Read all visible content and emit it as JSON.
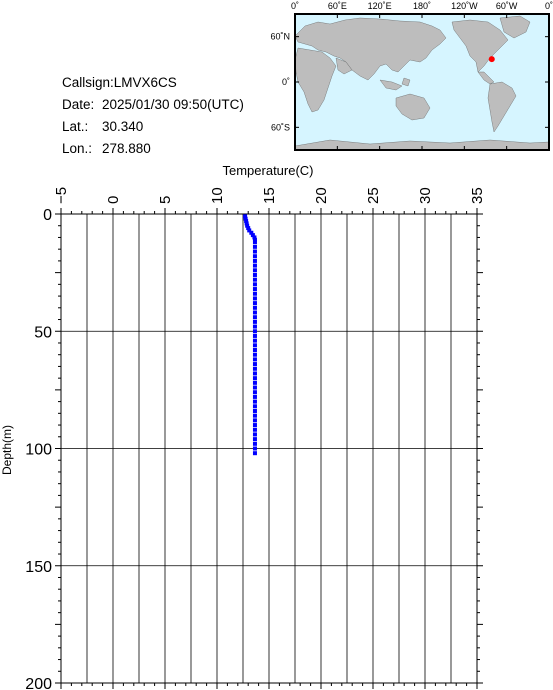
{
  "station": {
    "callsign_label": "Callsign:",
    "callsign": "LMVX6CS",
    "date_label": "Date:",
    "date": "2025/01/30 09:50(UTC)",
    "lat_label": "Lat.:",
    "lat": "30.340",
    "lon_label": "Lon.:",
    "lon": "278.880"
  },
  "map": {
    "lon_ticks": [
      "0˚",
      "60˚E",
      "120˚E",
      "180˚",
      "120˚W",
      "60˚W",
      "0˚"
    ],
    "lat_ticks": [
      "60˚N",
      "0˚",
      "60˚S"
    ],
    "ocean_color": "#d6f5ff",
    "land_color": "#bdbdbd",
    "marker_color": "#ff0000",
    "marker_lon": 278.88,
    "marker_lat": 30.34
  },
  "chart_data": {
    "type": "scatter",
    "xlabel": "Temperature(C)",
    "ylabel": "Depth(m)",
    "xlim": [
      -5,
      35
    ],
    "ylim": [
      200,
      0
    ],
    "x_ticks": [
      -5,
      0,
      5,
      10,
      15,
      20,
      25,
      30,
      35
    ],
    "y_ticks": [
      0,
      50,
      100,
      150,
      200
    ],
    "grid": true,
    "point_color": "#0000ff",
    "series": [
      {
        "points": [
          [
            12.7,
            1
          ],
          [
            12.75,
            2
          ],
          [
            12.8,
            3
          ],
          [
            12.85,
            4
          ],
          [
            12.9,
            5
          ],
          [
            13.0,
            6
          ],
          [
            13.1,
            7
          ],
          [
            13.3,
            8
          ],
          [
            13.45,
            9
          ],
          [
            13.6,
            10
          ],
          [
            13.65,
            11
          ],
          [
            13.65,
            12
          ],
          [
            13.65,
            14
          ],
          [
            13.65,
            16
          ],
          [
            13.65,
            18
          ],
          [
            13.65,
            20
          ],
          [
            13.65,
            22
          ],
          [
            13.65,
            24
          ],
          [
            13.65,
            26
          ],
          [
            13.65,
            28
          ],
          [
            13.65,
            30
          ],
          [
            13.65,
            32
          ],
          [
            13.65,
            34
          ],
          [
            13.65,
            36
          ],
          [
            13.65,
            38
          ],
          [
            13.65,
            40
          ],
          [
            13.65,
            42
          ],
          [
            13.65,
            44
          ],
          [
            13.65,
            46
          ],
          [
            13.65,
            48
          ],
          [
            13.65,
            50
          ],
          [
            13.65,
            52
          ],
          [
            13.65,
            54
          ],
          [
            13.65,
            56
          ],
          [
            13.65,
            58
          ],
          [
            13.65,
            60
          ],
          [
            13.65,
            62
          ],
          [
            13.65,
            64
          ],
          [
            13.65,
            66
          ],
          [
            13.65,
            68
          ],
          [
            13.65,
            70
          ],
          [
            13.65,
            72
          ],
          [
            13.65,
            74
          ],
          [
            13.65,
            76
          ],
          [
            13.65,
            78
          ],
          [
            13.65,
            80
          ],
          [
            13.65,
            82
          ],
          [
            13.65,
            84
          ],
          [
            13.65,
            86
          ],
          [
            13.65,
            88
          ],
          [
            13.65,
            90
          ],
          [
            13.65,
            92
          ],
          [
            13.65,
            94
          ],
          [
            13.65,
            96
          ],
          [
            13.65,
            98
          ],
          [
            13.65,
            100
          ],
          [
            13.65,
            102
          ]
        ]
      }
    ]
  }
}
